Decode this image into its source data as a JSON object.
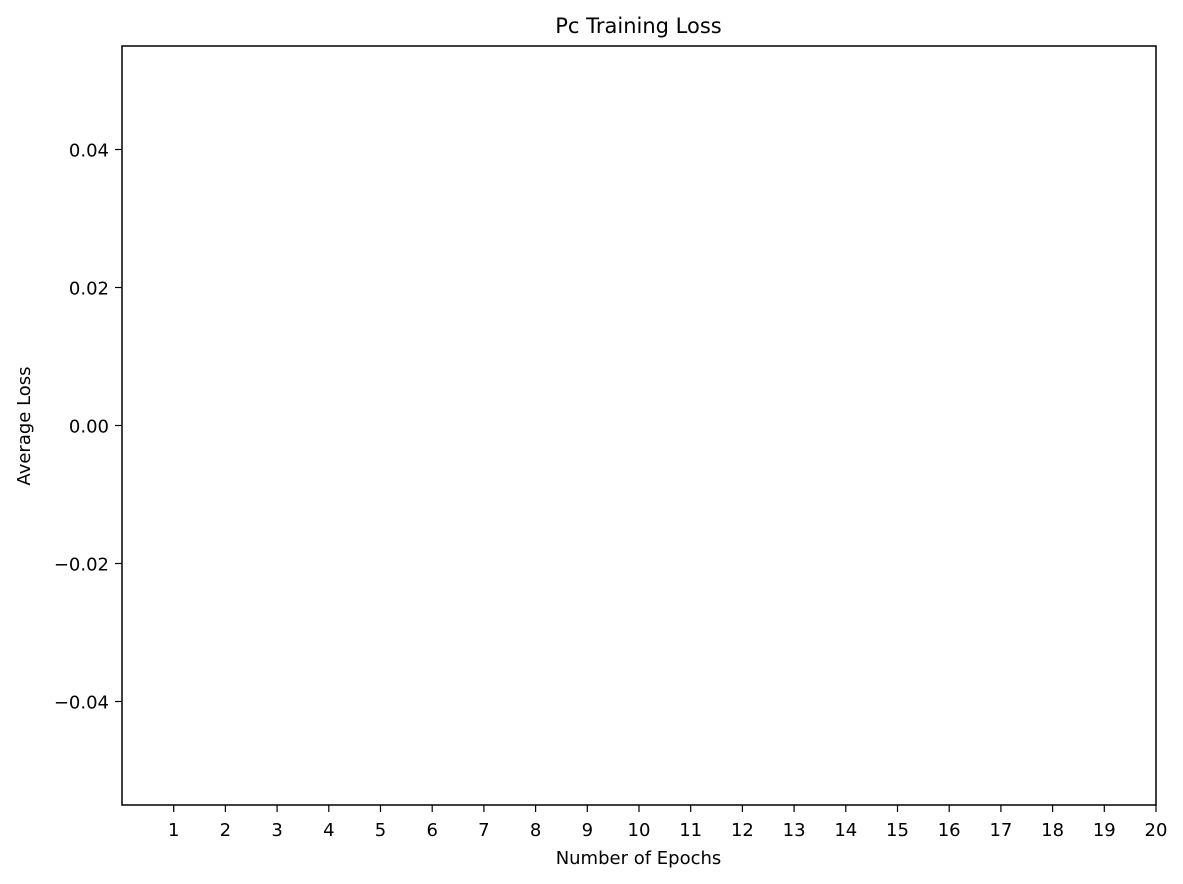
{
  "chart_data": {
    "type": "line",
    "title": "Pc Training Loss",
    "xlabel": "Number of Epochs",
    "ylabel": "Average Loss",
    "x_ticks": [
      "1",
      "2",
      "3",
      "4",
      "5",
      "6",
      "7",
      "8",
      "9",
      "10",
      "11",
      "12",
      "13",
      "14",
      "15",
      "16",
      "17",
      "18",
      "19",
      "20"
    ],
    "y_ticks": [
      "0.04",
      "0.02",
      "0.00",
      "−0.02",
      "−0.04"
    ],
    "y_tick_values": [
      0.04,
      0.02,
      0.0,
      -0.02,
      -0.04
    ],
    "xlim": [
      0,
      20
    ],
    "ylim": [
      -0.055,
      0.055
    ],
    "series": [],
    "grid": false,
    "legend": "none",
    "colors": {
      "axes": "#000000",
      "background": "#ffffff"
    }
  }
}
